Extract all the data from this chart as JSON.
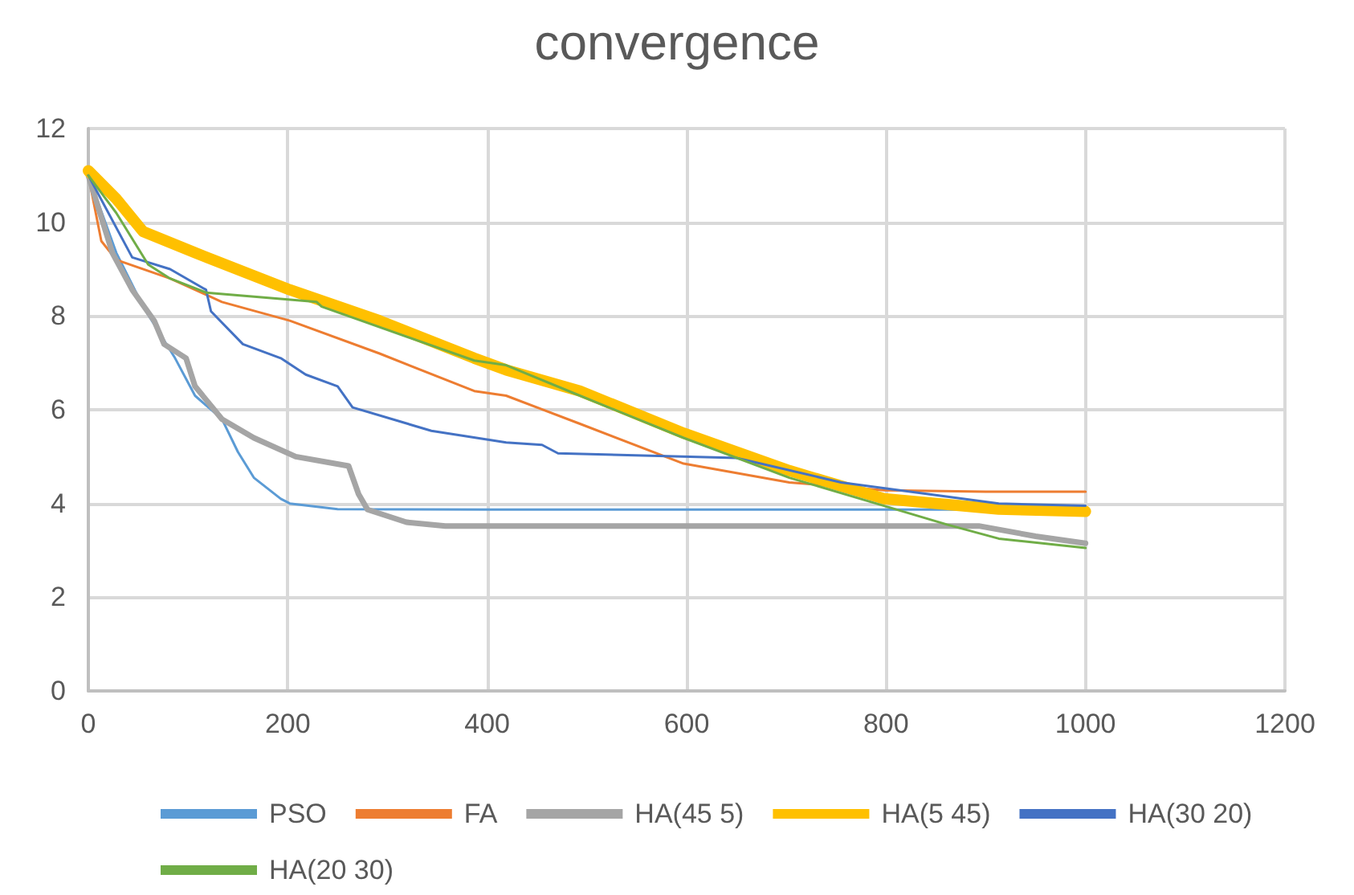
{
  "chart_data": {
    "type": "line",
    "title": "convergence",
    "xlim": [
      0,
      1200
    ],
    "xticks": [
      0,
      200,
      400,
      600,
      800,
      1000,
      1200
    ],
    "ylim": [
      0,
      12
    ],
    "yticks": [
      0,
      2,
      4,
      6,
      8,
      10,
      12
    ],
    "grid": true,
    "legend": "bottom",
    "marker": "none",
    "line_style": "solid",
    "series": [
      {
        "name": "PSO",
        "color": "#5b9bd5",
        "x": [
          0,
          28,
          55,
          87,
          107,
          134,
          150,
          166,
          193,
          202,
          250,
          400,
          600,
          800,
          1000
        ],
        "values": [
          11,
          9.35,
          8.2,
          7.1,
          6.3,
          5.8,
          5.1,
          4.55,
          4.1,
          4.0,
          3.88,
          3.87,
          3.87,
          3.87,
          3.87
        ]
      },
      {
        "name": "FA",
        "color": "#ed7d31",
        "x": [
          0,
          13,
          28,
          82,
          134,
          202,
          292,
          387,
          419,
          493,
          597,
          703,
          798,
          900,
          1000
        ],
        "values": [
          11,
          9.6,
          9.2,
          8.8,
          8.3,
          7.9,
          7.2,
          6.4,
          6.3,
          5.7,
          4.85,
          4.45,
          4.28,
          4.25,
          4.25
        ]
      },
      {
        "name": "HA(45 5)",
        "color": "#a5a5a5",
        "x": [
          0,
          24,
          44,
          66,
          76,
          98,
          107,
          134,
          166,
          208,
          261,
          271,
          280,
          319,
          358,
          600,
          893,
          950,
          1000
        ],
        "values": [
          11,
          9.35,
          8.56,
          7.9,
          7.4,
          7.1,
          6.5,
          5.8,
          5.4,
          5.0,
          4.8,
          4.2,
          3.87,
          3.6,
          3.52,
          3.52,
          3.52,
          3.3,
          3.15
        ]
      },
      {
        "name": "HA(5 45)",
        "color": "#ffc000",
        "x": [
          0,
          28,
          55,
          107,
          202,
          292,
          387,
          419,
          493,
          597,
          703,
          798,
          913,
          1000
        ],
        "values": [
          11.1,
          10.5,
          9.8,
          9.35,
          8.56,
          7.9,
          7.1,
          6.85,
          6.4,
          5.5,
          4.7,
          4.1,
          3.88,
          3.83
        ]
      },
      {
        "name": "HA(30 20)",
        "color": "#4472c4",
        "x": [
          0,
          44,
          82,
          118,
          123,
          155,
          193,
          218,
          250,
          265,
          344,
          419,
          455,
          471,
          650,
          755,
          913,
          1000
        ],
        "values": [
          11,
          9.25,
          9.0,
          8.56,
          8.1,
          7.4,
          7.1,
          6.75,
          6.5,
          6.05,
          5.55,
          5.3,
          5.25,
          5.07,
          4.97,
          4.45,
          4.0,
          3.95
        ]
      },
      {
        "name": "HA(20 30)",
        "color": "#70ad47",
        "x": [
          0,
          28,
          60,
          82,
          118,
          229,
          234,
          387,
          419,
          493,
          597,
          703,
          798,
          861,
          913,
          1000
        ],
        "values": [
          11,
          10.2,
          9.1,
          8.8,
          8.5,
          8.3,
          8.2,
          7.05,
          6.95,
          6.3,
          5.4,
          4.55,
          3.95,
          3.55,
          3.25,
          3.05
        ]
      }
    ]
  }
}
